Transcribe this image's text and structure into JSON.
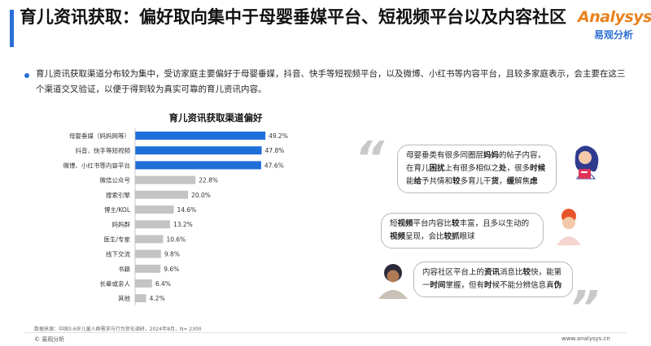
{
  "header": {
    "title": "育儿资讯获取：偏好取向集中于母婴垂媒平台、短视频平台以及内容社区",
    "logo_en": "Analysys",
    "logo_cn": "易观分析"
  },
  "summary": "育儿资讯获取渠道分布较为集中，受访家庭主要偏好于母婴垂媒，抖音、快手等短视频平台，以及微博、小红书等内容平台，且较多家庭表示，会主要在这三个渠道交叉验证，以便于得到较为真实可靠的育儿资讯内容。",
  "chart_data": {
    "type": "bar",
    "orientation": "horizontal",
    "title": "育儿资讯获取渠道偏好",
    "categories": [
      "母婴垂媒（妈妈网等）",
      "抖音、快手等短视频",
      "微博、小红书等内容平台",
      "微信公众号",
      "搜索引擎",
      "博主/KOL",
      "妈妈群",
      "医生/专家",
      "线下交流",
      "书籍",
      "长辈或亲人",
      "其他"
    ],
    "values": [
      49.2,
      47.8,
      47.6,
      22.8,
      20.0,
      14.6,
      13.2,
      10.6,
      9.8,
      9.6,
      6.4,
      4.2
    ],
    "value_labels": [
      "49.2%",
      "47.8%",
      "47.6%",
      "22.8%",
      "20.0%",
      "14.6%",
      "13.2%",
      "10.6%",
      "9.8%",
      "9.6%",
      "6.4%",
      "4.2%"
    ],
    "highlight_count": 3,
    "colors": {
      "highlight": "#1e6fd8",
      "normal": "#c4c4c4"
    },
    "xlim": [
      0,
      55
    ],
    "grid": false,
    "legend": "none"
  },
  "quotes": {
    "open_mark": "“",
    "close_mark": "”",
    "items": [
      {
        "segments": [
          {
            "t": "母婴垂类有很多同圈层",
            "b": false
          },
          {
            "t": "妈妈",
            "b": true
          },
          {
            "t": "的帖子内容，在育儿",
            "b": false
          },
          {
            "t": "困扰",
            "b": true
          },
          {
            "t": "上有很多相似之",
            "b": false
          },
          {
            "t": "处",
            "b": true
          },
          {
            "t": "，很多",
            "b": false
          },
          {
            "t": "时候",
            "b": true
          },
          {
            "t": "能",
            "b": false
          },
          {
            "t": "给",
            "b": true
          },
          {
            "t": "予共情和",
            "b": false
          },
          {
            "t": "较",
            "b": true
          },
          {
            "t": "多育儿干",
            "b": false
          },
          {
            "t": "货",
            "b": true
          },
          {
            "t": "，",
            "b": false
          },
          {
            "t": "缓",
            "b": true
          },
          {
            "t": "解焦",
            "b": false
          },
          {
            "t": "虑",
            "b": true
          }
        ]
      },
      {
        "segments": [
          {
            "t": "短",
            "b": false
          },
          {
            "t": "视频",
            "b": true
          },
          {
            "t": "平台内容比",
            "b": false
          },
          {
            "t": "较",
            "b": true
          },
          {
            "t": "丰富，且多以生动的",
            "b": false
          },
          {
            "t": "视频",
            "b": true
          },
          {
            "t": "呈现，会比",
            "b": false
          },
          {
            "t": "较抓",
            "b": true
          },
          {
            "t": "眼球",
            "b": false
          }
        ]
      },
      {
        "segments": [
          {
            "t": "内容社区平台上的",
            "b": false
          },
          {
            "t": "资讯",
            "b": true
          },
          {
            "t": "消息比",
            "b": false
          },
          {
            "t": "较",
            "b": true
          },
          {
            "t": "快，能第一",
            "b": false
          },
          {
            "t": "时间",
            "b": true
          },
          {
            "t": "掌握，但有",
            "b": false
          },
          {
            "t": "时",
            "b": true
          },
          {
            "t": "候不能分辨信息真",
            "b": false
          },
          {
            "t": "伪",
            "b": true
          }
        ]
      }
    ]
  },
  "footer": {
    "source": "数据来源：中国3-6岁儿童人群需求与行为变化调研，2024年8月，N= 2300",
    "copyright": "© 易观分析",
    "website": "www.analysys.cn"
  }
}
